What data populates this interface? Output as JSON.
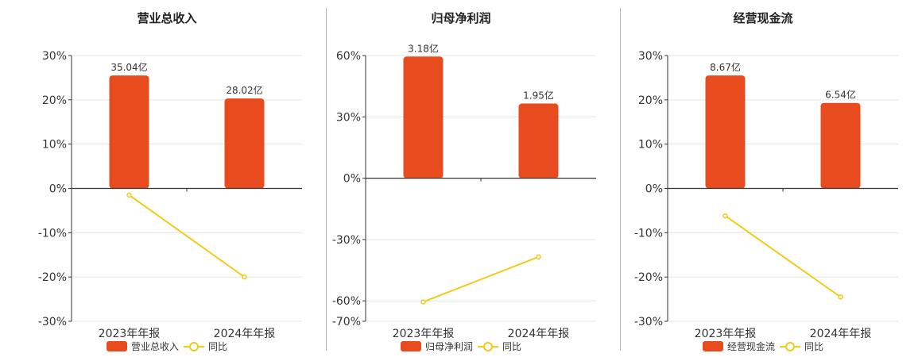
{
  "colors": {
    "bar": "#e84c1e",
    "line": "#f0cc19",
    "axis": "#333333",
    "grid": "#e6e6e6"
  },
  "legend": {
    "line_label": "同比"
  },
  "chart_data": [
    {
      "type": "bar",
      "title": "营业总收入",
      "bar_series_name": "营业总收入",
      "categories": [
        "2023年年报",
        "2024年年报"
      ],
      "bar_labels": [
        "35.04亿",
        "28.02亿"
      ],
      "yoy": [
        -1.5,
        -20
      ],
      "ylim": [
        -30,
        30
      ],
      "ticks": [
        30,
        20,
        10,
        0,
        -10,
        -20,
        -30
      ],
      "tick_labels": [
        "30%",
        "20%",
        "10%",
        "0%",
        "-10%",
        "-20%",
        "-30%"
      ],
      "bar_heights": [
        25.5,
        20.3
      ],
      "grid": true
    },
    {
      "type": "bar",
      "title": "归母净利润",
      "bar_series_name": "归母净利润",
      "categories": [
        "2023年年报",
        "2024年年报"
      ],
      "bar_labels": [
        "3.18亿",
        "1.95亿"
      ],
      "yoy": [
        -60.5,
        -38.5
      ],
      "ylim": [
        -70,
        60
      ],
      "ticks": [
        60,
        30,
        0,
        -30,
        -60,
        -70
      ],
      "tick_labels": [
        "60%",
        "30%",
        "0%",
        "-30%",
        "-60%",
        "-70%"
      ],
      "bar_heights": [
        59.5,
        36.5
      ],
      "grid": true
    },
    {
      "type": "bar",
      "title": "经营现金流",
      "bar_series_name": "经营现金流",
      "categories": [
        "2023年年报",
        "2024年年报"
      ],
      "bar_labels": [
        "8.67亿",
        "6.54亿"
      ],
      "yoy": [
        -6.2,
        -24.5
      ],
      "ylim": [
        -30,
        30
      ],
      "ticks": [
        30,
        20,
        10,
        0,
        -10,
        -20,
        -30
      ],
      "tick_labels": [
        "30%",
        "20%",
        "10%",
        "0%",
        "-10%",
        "-20%",
        "-30%"
      ],
      "bar_heights": [
        25.5,
        19.3
      ],
      "grid": true
    }
  ]
}
